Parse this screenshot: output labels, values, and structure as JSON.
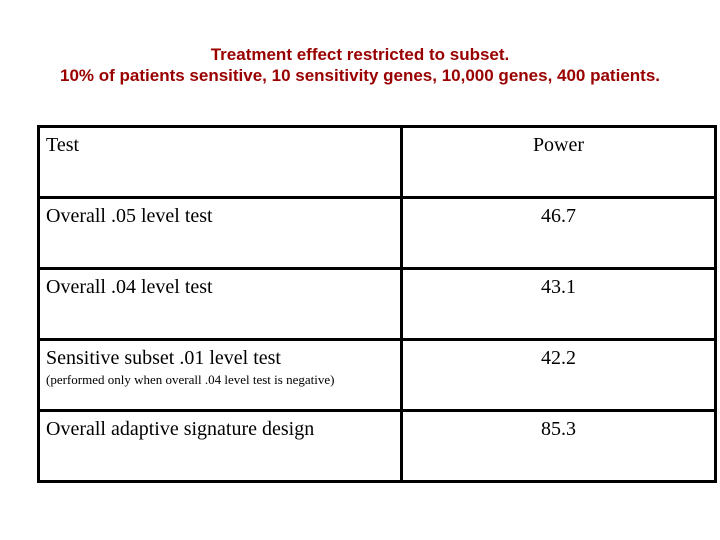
{
  "slide": {
    "title": {
      "line1": "Treatment effect restricted to subset.",
      "line2": "10% of patients sensitive, 10 sensitivity genes, 10,000 genes, 400 patients.",
      "color": "#990000"
    },
    "table": {
      "headers": {
        "test": "Test",
        "power": "Power"
      },
      "rows": [
        {
          "test": "Overall .05 level test",
          "power": "46.7"
        },
        {
          "test": "Overall .04 level test",
          "power": "43.1"
        },
        {
          "test": "Sensitive subset .01 level test",
          "note": "(performed only when overall .04 level test is negative)",
          "power": "42.2"
        },
        {
          "test": "Overall adaptive signature design",
          "power": "85.3"
        }
      ],
      "border_color": "#000000"
    }
  }
}
